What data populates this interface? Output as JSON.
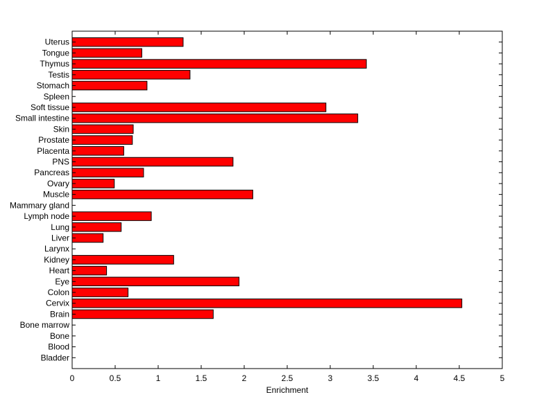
{
  "chart_data": {
    "type": "bar",
    "orientation": "horizontal",
    "xlabel": "Enrichment",
    "ylabel": "",
    "title": "",
    "xlim": [
      0,
      5
    ],
    "xticks": [
      "0",
      "0.5",
      "1",
      "1.5",
      "2",
      "2.5",
      "3",
      "3.5",
      "4",
      "4.5",
      "5"
    ],
    "grid": false,
    "legend": "none",
    "bar_color": "#ff0000",
    "categories": [
      "Bladder",
      "Blood",
      "Bone",
      "Bone marrow",
      "Brain",
      "Cervix",
      "Colon",
      "Eye",
      "Heart",
      "Kidney",
      "Larynx",
      "Liver",
      "Lung",
      "Lymph node",
      "Mammary gland",
      "Muscle",
      "Ovary",
      "Pancreas",
      "PNS",
      "Placenta",
      "Prostate",
      "Skin",
      "Small intestine",
      "Soft tissue",
      "Spleen",
      "Stomach",
      "Testis",
      "Thymus",
      "Tongue",
      "Uterus"
    ],
    "values": [
      0,
      0,
      0,
      0,
      1.64,
      4.53,
      0.65,
      1.94,
      0.4,
      1.18,
      0,
      0.36,
      0.57,
      0.92,
      0,
      2.1,
      0.49,
      0.83,
      1.87,
      0.6,
      0.7,
      0.71,
      3.32,
      2.95,
      0,
      0.87,
      1.37,
      3.42,
      0.81,
      1.29
    ]
  }
}
